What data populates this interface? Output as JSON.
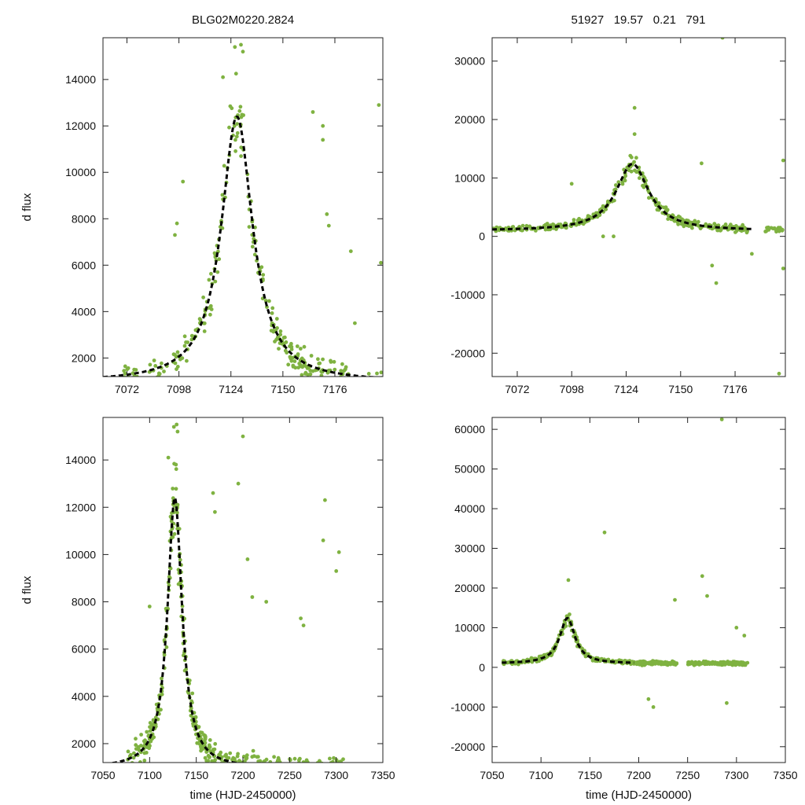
{
  "figure_title_left": "BLG02M0220.2824",
  "figure_title_right": "51927   19.57   0.21   791",
  "colors": {
    "points": "#7fb241",
    "fit": "#000000"
  },
  "chart_data": [
    {
      "type": "scatter",
      "id": "top-left",
      "ylabel": "d flux",
      "xlabel": "",
      "xlim": [
        7060,
        7200
      ],
      "ylim": [
        1200,
        15800
      ],
      "xticks": [
        7072,
        7098,
        7124,
        7150,
        7176
      ],
      "yticks": [
        2000,
        4000,
        6000,
        8000,
        10000,
        12000,
        14000
      ],
      "fit": {
        "model": "lorentzian",
        "t0": 7127,
        "peak": 12400,
        "tau": 9.5,
        "baseline": 950,
        "x_start": 7060,
        "x_end": 7200
      },
      "noise_scale": 0.12,
      "clusters": [
        [
          7070,
          7078,
          14
        ],
        [
          7083,
          7092,
          14
        ],
        [
          7094,
          7112,
          40
        ],
        [
          7113,
          7142,
          80
        ],
        [
          7143,
          7170,
          90
        ],
        [
          7171,
          7183,
          26
        ],
        [
          7192,
          7200,
          14
        ]
      ],
      "outliers": [
        [
          7120,
          14100
        ],
        [
          7126,
          15400
        ],
        [
          7129,
          15500
        ],
        [
          7130,
          15200
        ],
        [
          7100,
          9600
        ],
        [
          7097,
          7800
        ],
        [
          7096,
          7300
        ],
        [
          7165,
          12600
        ],
        [
          7170,
          12000
        ],
        [
          7170,
          11400
        ],
        [
          7172,
          8200
        ],
        [
          7173,
          7700
        ],
        [
          7184,
          6600
        ],
        [
          7198,
          12900
        ],
        [
          7199,
          6100
        ],
        [
          7186,
          3500
        ]
      ]
    },
    {
      "type": "scatter",
      "id": "top-right",
      "ylabel": "",
      "xlabel": "",
      "xlim": [
        7060,
        7200
      ],
      "ylim": [
        -24000,
        34000
      ],
      "xticks": [
        7072,
        7098,
        7124,
        7150,
        7176
      ],
      "yticks": [
        -20000,
        -10000,
        0,
        10000,
        20000,
        30000
      ],
      "fit": {
        "model": "lorentzian",
        "t0": 7127,
        "peak": 12400,
        "tau": 9.5,
        "baseline": 950,
        "x_start": 7060,
        "x_end": 7185
      },
      "noise_scale": 0.1,
      "clusters": [
        [
          7060,
          7078,
          40
        ],
        [
          7078,
          7095,
          45
        ],
        [
          7095,
          7110,
          45
        ],
        [
          7110,
          7140,
          80
        ],
        [
          7140,
          7160,
          70
        ],
        [
          7160,
          7182,
          70
        ],
        [
          7190,
          7200,
          20
        ]
      ],
      "outliers": [
        [
          7128,
          22000
        ],
        [
          7128,
          17500
        ],
        [
          7165,
          -5000
        ],
        [
          7167,
          -8000
        ],
        [
          7184,
          -3000
        ],
        [
          7199,
          -5500
        ],
        [
          7199,
          13000
        ],
        [
          7170,
          34000
        ],
        [
          7197,
          -23500
        ],
        [
          7160,
          12500
        ],
        [
          7113,
          0
        ],
        [
          7118,
          0
        ],
        [
          7098,
          9000
        ]
      ]
    },
    {
      "type": "scatter",
      "id": "bottom-left",
      "ylabel": "d flux",
      "xlabel": "time (HJD-2450000)",
      "xlim": [
        7050,
        7350
      ],
      "ylim": [
        1200,
        15800
      ],
      "xticks": [
        7050,
        7100,
        7150,
        7200,
        7250,
        7300,
        7350
      ],
      "yticks": [
        2000,
        4000,
        6000,
        8000,
        10000,
        12000,
        14000
      ],
      "fit": {
        "model": "lorentzian",
        "t0": 7127,
        "peak": 12400,
        "tau": 9.5,
        "baseline": 950,
        "x_start": 7060,
        "x_end": 7193
      },
      "noise_scale": 0.12,
      "clusters": [
        [
          7075,
          7095,
          30
        ],
        [
          7095,
          7115,
          50
        ],
        [
          7115,
          7140,
          90
        ],
        [
          7140,
          7170,
          90
        ],
        [
          7170,
          7195,
          40
        ],
        [
          7195,
          7240,
          90
        ],
        [
          7250,
          7310,
          90
        ]
      ],
      "outliers": [
        [
          7120,
          14100
        ],
        [
          7126,
          15400
        ],
        [
          7129,
          15500
        ],
        [
          7130,
          15200
        ],
        [
          7100,
          7800
        ],
        [
          7168,
          12600
        ],
        [
          7170,
          11800
        ],
        [
          7195,
          13000
        ],
        [
          7200,
          15000
        ],
        [
          7205,
          9800
        ],
        [
          7210,
          8200
        ],
        [
          7225,
          8000
        ],
        [
          7262,
          7300
        ],
        [
          7265,
          7000
        ],
        [
          7288,
          12300
        ],
        [
          7286,
          10600
        ],
        [
          7303,
          10100
        ],
        [
          7300,
          9300
        ]
      ]
    },
    {
      "type": "scatter",
      "id": "bottom-right",
      "ylabel": "",
      "xlabel": "time (HJD-2450000)",
      "xlim": [
        7050,
        7350
      ],
      "ylim": [
        -24000,
        63000
      ],
      "xticks": [
        7050,
        7100,
        7150,
        7200,
        7250,
        7300,
        7350
      ],
      "yticks": [
        -20000,
        -10000,
        0,
        10000,
        20000,
        30000,
        40000,
        50000,
        60000
      ],
      "fit": {
        "model": "lorentzian",
        "t0": 7127,
        "peak": 12400,
        "tau": 9.5,
        "baseline": 950,
        "x_start": 7060,
        "x_end": 7195
      },
      "noise_scale": 0.1,
      "clusters": [
        [
          7060,
          7095,
          60
        ],
        [
          7095,
          7140,
          90
        ],
        [
          7140,
          7195,
          90
        ],
        [
          7195,
          7240,
          110
        ],
        [
          7250,
          7312,
          130
        ]
      ],
      "outliers": [
        [
          7128,
          22000
        ],
        [
          7165,
          34000
        ],
        [
          7210,
          -8000
        ],
        [
          7215,
          -10000
        ],
        [
          7265,
          23000
        ],
        [
          7270,
          18000
        ],
        [
          7285,
          62500
        ],
        [
          7290,
          -9000
        ],
        [
          7237,
          17000
        ],
        [
          7300,
          10000
        ],
        [
          7308,
          8000
        ]
      ]
    }
  ]
}
